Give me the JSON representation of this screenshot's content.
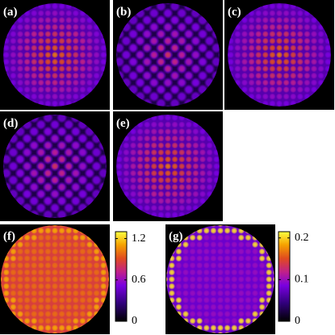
{
  "panels": [
    {
      "label": "(a)"
    },
    {
      "label": "(b)"
    },
    {
      "label": "(c)"
    },
    {
      "label": "(d)"
    },
    {
      "label": "(e)"
    },
    {
      "label": "(f)"
    },
    {
      "label": "(g)"
    }
  ],
  "colorbars": [
    {
      "ticks": [
        0,
        0.6,
        1.2
      ],
      "lim": [
        0,
        1.3
      ]
    },
    {
      "ticks": [
        0,
        0.1,
        0.2
      ],
      "lim": [
        0,
        0.215
      ]
    }
  ]
}
